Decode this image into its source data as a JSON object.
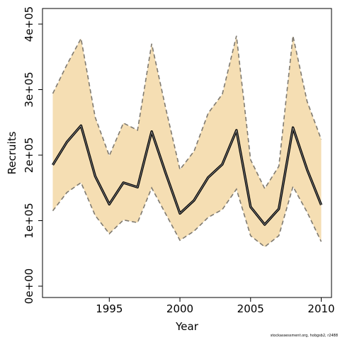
{
  "chart_data": {
    "type": "line",
    "title": "",
    "xlabel": "Year",
    "ylabel": "Recruits",
    "x": [
      1991,
      1992,
      1993,
      1994,
      1995,
      1996,
      1997,
      1998,
      1999,
      2000,
      2001,
      2002,
      2003,
      2004,
      2005,
      2006,
      2007,
      2008,
      2009,
      2010
    ],
    "series": [
      {
        "role": "estimate",
        "values": [
          185000,
          220000,
          245000,
          168000,
          125000,
          158000,
          151000,
          236000,
          172000,
          111000,
          131000,
          166000,
          186000,
          238000,
          121000,
          94000,
          118000,
          242000,
          178000,
          124000
        ]
      },
      {
        "role": "upper",
        "values": [
          294000,
          338000,
          378000,
          258000,
          199000,
          249000,
          238000,
          370000,
          271000,
          178000,
          206000,
          264000,
          293000,
          382000,
          193000,
          149000,
          183000,
          382000,
          282000,
          224000
        ]
      },
      {
        "role": "lower",
        "values": [
          115000,
          143000,
          158000,
          108000,
          80000,
          101000,
          97000,
          150000,
          110000,
          70000,
          84000,
          105000,
          117000,
          148000,
          77000,
          60000,
          77000,
          152000,
          113000,
          68000
        ]
      }
    ],
    "xlim": [
      1990.5,
      2010.5
    ],
    "ylim": [
      0,
      400000
    ],
    "x_ticks": [
      1995,
      2000,
      2005,
      2010
    ],
    "x_tick_labels": [
      "1995",
      "2000",
      "2005",
      "2010"
    ],
    "y_ticks": [
      0,
      100000,
      200000,
      300000,
      400000
    ],
    "y_tick_labels": [
      "0e+00",
      "1e+05",
      "2e+05",
      "3e+05",
      "4e+05"
    ],
    "grid": false,
    "legend": "none",
    "colors": {
      "band": "#f5deb3",
      "band_edge": "#7f7a70",
      "line": "#000000"
    }
  },
  "credit": "stockassessment.org, hobgsb2, r2488"
}
